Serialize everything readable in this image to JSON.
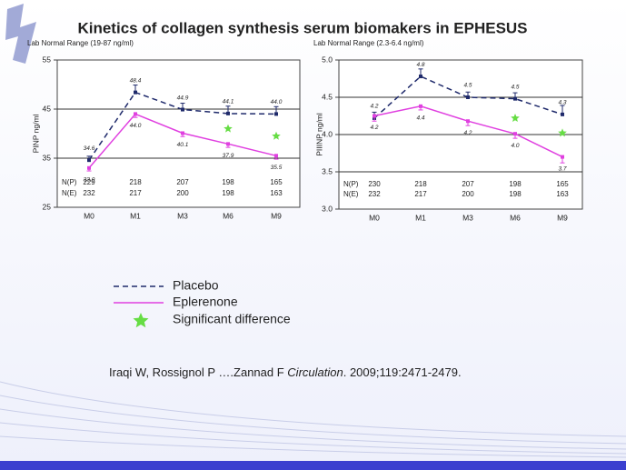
{
  "title": "Kinetics of collagen synthesis serum biomakers in EPHESUS",
  "citation": {
    "authors": "Iraqi W,  Rossignol P ….Zannad  F ",
    "journal": "Circulation",
    "ref": ". 2009;119:2471-2479."
  },
  "chart_data": [
    {
      "type": "line",
      "note": "Lab Normal Range (19-87 ng/ml)",
      "y_label": "PINP ng/ml",
      "categories": [
        "M0",
        "M1",
        "M3",
        "M6",
        "M9"
      ],
      "ylim": [
        25,
        55
      ],
      "yticks": [
        25,
        35,
        45,
        55
      ],
      "reference_lines": [
        35,
        45
      ],
      "series": [
        {
          "name": "Placebo",
          "color": "#1f2a6b",
          "dashed": true,
          "values": [
            34.6,
            48.4,
            44.9,
            44.1,
            44.0
          ],
          "value_labels": [
            "34.6",
            "48.4",
            "44.9",
            "44.1",
            "44.0"
          ],
          "errors": [
            0.8,
            1.5,
            1.3,
            1.5,
            1.5
          ]
        },
        {
          "name": "Eplerenone",
          "color": "#e040e0",
          "dashed": false,
          "values": [
            33.0,
            44.0,
            40.1,
            37.9,
            35.5
          ],
          "value_labels": [
            "33.0",
            "44.0",
            "40.1",
            "37.9",
            "35.5"
          ],
          "errors": [
            0.6,
            0.7,
            0.7,
            0.7,
            0.7
          ]
        }
      ],
      "markers": {
        "name": "Significant difference",
        "color": "#66dd44",
        "values": [
          null,
          null,
          null,
          41.0,
          39.5
        ]
      },
      "n_rows": [
        {
          "label": "N(P)",
          "values": [
            229,
            218,
            207,
            198,
            165
          ]
        },
        {
          "label": "N(E)",
          "values": [
            232,
            217,
            200,
            198,
            163
          ]
        }
      ]
    },
    {
      "type": "line",
      "note": "Lab Normal Range (2.3-6.4 ng/ml)",
      "y_label": "PIIINP ng/ml",
      "categories": [
        "M0",
        "M1",
        "M3",
        "M6",
        "M9"
      ],
      "ylim": [
        3,
        5
      ],
      "yticks": [
        {
          "value": 3,
          "label": "3.0"
        },
        3.5,
        {
          "value": 4,
          "label": "4.0"
        },
        4.5,
        {
          "value": 5,
          "label": "5.0"
        }
      ],
      "reference_lines": [
        3.5,
        4,
        4.5
      ],
      "series": [
        {
          "color": "#1f2a6b",
          "dashed": true,
          "values": [
            4.22,
            4.78,
            4.5,
            4.48,
            4.27
          ],
          "value_labels": [
            "4.2",
            "4.8",
            "4.5",
            "4.5",
            "4.3"
          ],
          "errors": [
            0.08,
            0.1,
            0.07,
            0.08,
            0.12
          ]
        },
        {
          "color": "#e040e0",
          "dashed": false,
          "values": [
            4.25,
            4.38,
            4.18,
            4.01,
            3.7
          ],
          "value_labels": [
            "4.2",
            "4.4",
            "4.2",
            "4.0",
            "3.7"
          ],
          "errors": [
            0.07,
            0.05,
            0.06,
            0.06,
            0.08
          ]
        }
      ],
      "markers": {
        "color": "#66dd44",
        "values": [
          null,
          null,
          null,
          4.22,
          4.02
        ]
      },
      "n_rows": [
        {
          "label": "N(P)",
          "values": [
            230,
            218,
            207,
            198,
            165
          ]
        },
        {
          "label": "N(E)",
          "values": [
            232,
            217,
            200,
            198,
            163
          ]
        }
      ]
    }
  ]
}
